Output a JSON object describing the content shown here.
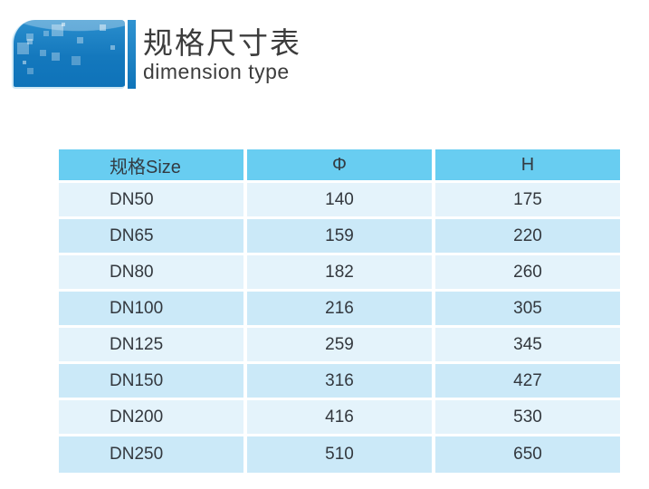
{
  "header": {
    "title": "规格尺寸表",
    "subtitle": "dimension type"
  },
  "table": {
    "columns": [
      "规格Size",
      "Φ",
      "H"
    ],
    "rows": [
      {
        "size": "DN50",
        "phi": "140",
        "h": "175"
      },
      {
        "size": "DN65",
        "phi": "159",
        "h": "220"
      },
      {
        "size": "DN80",
        "phi": "182",
        "h": "260"
      },
      {
        "size": "DN100",
        "phi": "216",
        "h": "305"
      },
      {
        "size": "DN125",
        "phi": "259",
        "h": "345"
      },
      {
        "size": "DN150",
        "phi": "316",
        "h": "427"
      },
      {
        "size": "DN200",
        "phi": "416",
        "h": "530"
      },
      {
        "size": "DN250",
        "phi": "510",
        "h": "650"
      }
    ]
  },
  "colors": {
    "header_bg": "#68cdf1",
    "row_light": "#e4f3fb",
    "row_dark": "#cbe9f8",
    "separator": "#ffffff",
    "text_dark": "#33383e",
    "title_text": "#3c3c3c",
    "logo_top": "#2a8ecd",
    "logo_bottom": "#0e73b9"
  }
}
